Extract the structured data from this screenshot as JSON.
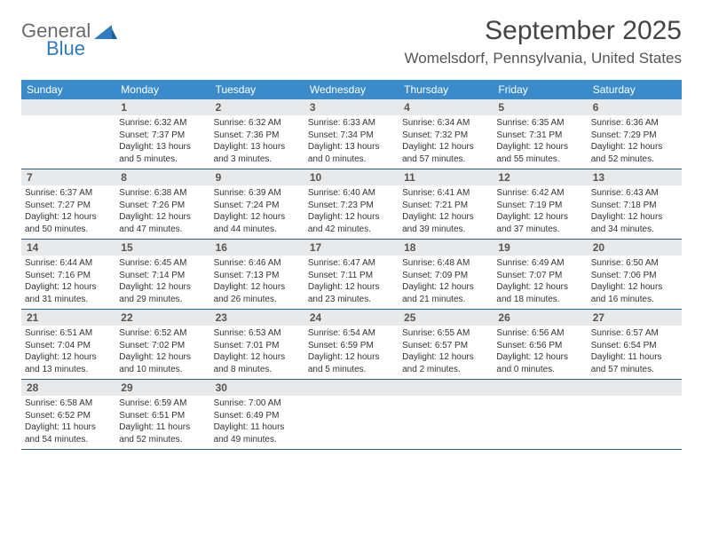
{
  "logo": {
    "word1": "General",
    "word2": "Blue",
    "brand_color": "#2f7bbf",
    "grey": "#6b6b6b"
  },
  "header": {
    "month_title": "September 2025",
    "location": "Womelsdorf, Pennsylvania, United States"
  },
  "colors": {
    "dow_bg": "#3b8bca",
    "dow_fg": "#ffffff",
    "strip_bg": "#e8e9ea",
    "rule": "#2a5d8a",
    "text": "#333333"
  },
  "days_of_week": [
    "Sunday",
    "Monday",
    "Tuesday",
    "Wednesday",
    "Thursday",
    "Friday",
    "Saturday"
  ],
  "weeks": [
    [
      {
        "empty": true
      },
      {
        "n": "1",
        "sunrise": "Sunrise: 6:32 AM",
        "sunset": "Sunset: 7:37 PM",
        "daylight": "Daylight: 13 hours and 5 minutes."
      },
      {
        "n": "2",
        "sunrise": "Sunrise: 6:32 AM",
        "sunset": "Sunset: 7:36 PM",
        "daylight": "Daylight: 13 hours and 3 minutes."
      },
      {
        "n": "3",
        "sunrise": "Sunrise: 6:33 AM",
        "sunset": "Sunset: 7:34 PM",
        "daylight": "Daylight: 13 hours and 0 minutes."
      },
      {
        "n": "4",
        "sunrise": "Sunrise: 6:34 AM",
        "sunset": "Sunset: 7:32 PM",
        "daylight": "Daylight: 12 hours and 57 minutes."
      },
      {
        "n": "5",
        "sunrise": "Sunrise: 6:35 AM",
        "sunset": "Sunset: 7:31 PM",
        "daylight": "Daylight: 12 hours and 55 minutes."
      },
      {
        "n": "6",
        "sunrise": "Sunrise: 6:36 AM",
        "sunset": "Sunset: 7:29 PM",
        "daylight": "Daylight: 12 hours and 52 minutes."
      }
    ],
    [
      {
        "n": "7",
        "sunrise": "Sunrise: 6:37 AM",
        "sunset": "Sunset: 7:27 PM",
        "daylight": "Daylight: 12 hours and 50 minutes."
      },
      {
        "n": "8",
        "sunrise": "Sunrise: 6:38 AM",
        "sunset": "Sunset: 7:26 PM",
        "daylight": "Daylight: 12 hours and 47 minutes."
      },
      {
        "n": "9",
        "sunrise": "Sunrise: 6:39 AM",
        "sunset": "Sunset: 7:24 PM",
        "daylight": "Daylight: 12 hours and 44 minutes."
      },
      {
        "n": "10",
        "sunrise": "Sunrise: 6:40 AM",
        "sunset": "Sunset: 7:23 PM",
        "daylight": "Daylight: 12 hours and 42 minutes."
      },
      {
        "n": "11",
        "sunrise": "Sunrise: 6:41 AM",
        "sunset": "Sunset: 7:21 PM",
        "daylight": "Daylight: 12 hours and 39 minutes."
      },
      {
        "n": "12",
        "sunrise": "Sunrise: 6:42 AM",
        "sunset": "Sunset: 7:19 PM",
        "daylight": "Daylight: 12 hours and 37 minutes."
      },
      {
        "n": "13",
        "sunrise": "Sunrise: 6:43 AM",
        "sunset": "Sunset: 7:18 PM",
        "daylight": "Daylight: 12 hours and 34 minutes."
      }
    ],
    [
      {
        "n": "14",
        "sunrise": "Sunrise: 6:44 AM",
        "sunset": "Sunset: 7:16 PM",
        "daylight": "Daylight: 12 hours and 31 minutes."
      },
      {
        "n": "15",
        "sunrise": "Sunrise: 6:45 AM",
        "sunset": "Sunset: 7:14 PM",
        "daylight": "Daylight: 12 hours and 29 minutes."
      },
      {
        "n": "16",
        "sunrise": "Sunrise: 6:46 AM",
        "sunset": "Sunset: 7:13 PM",
        "daylight": "Daylight: 12 hours and 26 minutes."
      },
      {
        "n": "17",
        "sunrise": "Sunrise: 6:47 AM",
        "sunset": "Sunset: 7:11 PM",
        "daylight": "Daylight: 12 hours and 23 minutes."
      },
      {
        "n": "18",
        "sunrise": "Sunrise: 6:48 AM",
        "sunset": "Sunset: 7:09 PM",
        "daylight": "Daylight: 12 hours and 21 minutes."
      },
      {
        "n": "19",
        "sunrise": "Sunrise: 6:49 AM",
        "sunset": "Sunset: 7:07 PM",
        "daylight": "Daylight: 12 hours and 18 minutes."
      },
      {
        "n": "20",
        "sunrise": "Sunrise: 6:50 AM",
        "sunset": "Sunset: 7:06 PM",
        "daylight": "Daylight: 12 hours and 16 minutes."
      }
    ],
    [
      {
        "n": "21",
        "sunrise": "Sunrise: 6:51 AM",
        "sunset": "Sunset: 7:04 PM",
        "daylight": "Daylight: 12 hours and 13 minutes."
      },
      {
        "n": "22",
        "sunrise": "Sunrise: 6:52 AM",
        "sunset": "Sunset: 7:02 PM",
        "daylight": "Daylight: 12 hours and 10 minutes."
      },
      {
        "n": "23",
        "sunrise": "Sunrise: 6:53 AM",
        "sunset": "Sunset: 7:01 PM",
        "daylight": "Daylight: 12 hours and 8 minutes."
      },
      {
        "n": "24",
        "sunrise": "Sunrise: 6:54 AM",
        "sunset": "Sunset: 6:59 PM",
        "daylight": "Daylight: 12 hours and 5 minutes."
      },
      {
        "n": "25",
        "sunrise": "Sunrise: 6:55 AM",
        "sunset": "Sunset: 6:57 PM",
        "daylight": "Daylight: 12 hours and 2 minutes."
      },
      {
        "n": "26",
        "sunrise": "Sunrise: 6:56 AM",
        "sunset": "Sunset: 6:56 PM",
        "daylight": "Daylight: 12 hours and 0 minutes."
      },
      {
        "n": "27",
        "sunrise": "Sunrise: 6:57 AM",
        "sunset": "Sunset: 6:54 PM",
        "daylight": "Daylight: 11 hours and 57 minutes."
      }
    ],
    [
      {
        "n": "28",
        "sunrise": "Sunrise: 6:58 AM",
        "sunset": "Sunset: 6:52 PM",
        "daylight": "Daylight: 11 hours and 54 minutes."
      },
      {
        "n": "29",
        "sunrise": "Sunrise: 6:59 AM",
        "sunset": "Sunset: 6:51 PM",
        "daylight": "Daylight: 11 hours and 52 minutes."
      },
      {
        "n": "30",
        "sunrise": "Sunrise: 7:00 AM",
        "sunset": "Sunset: 6:49 PM",
        "daylight": "Daylight: 11 hours and 49 minutes."
      },
      {
        "empty": true
      },
      {
        "empty": true
      },
      {
        "empty": true
      },
      {
        "empty": true
      }
    ]
  ]
}
